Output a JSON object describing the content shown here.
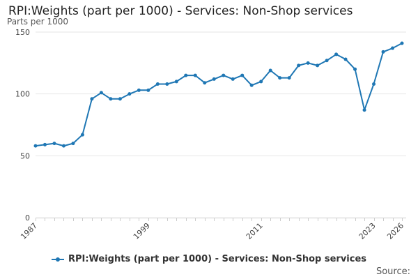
{
  "chart_data": {
    "type": "line",
    "title": "RPI:Weights (part per 1000) - Services: Non-Shop services",
    "ylabel": "Parts per 1000",
    "xlabel": "",
    "source_label": "Source:",
    "x": [
      1987,
      1988,
      1989,
      1990,
      1991,
      1992,
      1993,
      1994,
      1995,
      1996,
      1997,
      1998,
      1999,
      2000,
      2001,
      2002,
      2003,
      2004,
      2005,
      2006,
      2007,
      2008,
      2009,
      2010,
      2011,
      2012,
      2013,
      2014,
      2015,
      2016,
      2017,
      2018,
      2019,
      2020,
      2021,
      2022,
      2023,
      2024,
      2025,
      2026
    ],
    "x_ticks": [
      "1987",
      "1999",
      "2011",
      "2023",
      "2026"
    ],
    "y_ticks": [
      "0",
      "50",
      "100",
      "150"
    ],
    "ylim": [
      0,
      150
    ],
    "xlim": [
      1987,
      2026
    ],
    "grid": true,
    "legend_position": "bottom",
    "color": "#1f77b4",
    "series": [
      {
        "name": "RPI:Weights (part per 1000) - Services: Non-Shop services",
        "values": [
          58,
          59,
          60,
          58,
          60,
          67,
          96,
          101,
          96,
          96,
          100,
          103,
          103,
          108,
          108,
          110,
          115,
          115,
          109,
          112,
          115,
          112,
          115,
          107,
          110,
          119,
          113,
          113,
          123,
          125,
          123,
          127,
          132,
          128,
          120,
          87,
          108,
          134,
          137,
          141
        ]
      }
    ]
  }
}
